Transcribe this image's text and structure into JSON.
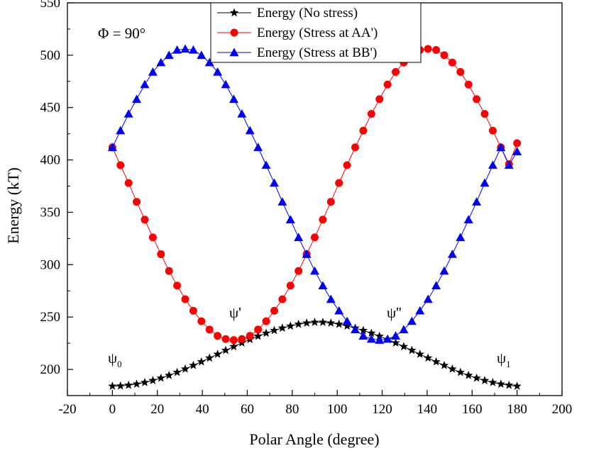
{
  "chart_data": {
    "type": "line",
    "title": "",
    "xlabel": "Polar Angle (degree)",
    "ylabel": "Energy (kT)",
    "xlim": [
      -20,
      200
    ],
    "ylim": [
      175,
      550
    ],
    "xticks": [
      "-20",
      "0",
      "20",
      "40",
      "60",
      "80",
      "100",
      "120",
      "140",
      "160",
      "180",
      "200"
    ],
    "yticks": [
      "200",
      "250",
      "300",
      "350",
      "400",
      "450",
      "500",
      "550"
    ],
    "grid": false,
    "legend_position": "top-center",
    "annotations": {
      "phi": "Φ = 90°",
      "psi0_main": "ψ",
      "psi0_sub": "0",
      "psi_prime": "ψ'",
      "psi_double_prime": "ψ''",
      "psi1_main": "ψ",
      "psi1_sub": "1"
    },
    "series": [
      {
        "name": "Energy (No stress)",
        "color": "#000000",
        "marker": "star",
        "x": [
          0,
          3.6,
          7.2,
          10.8,
          14.4,
          18,
          21.6,
          25.2,
          28.8,
          32.4,
          36,
          39.6,
          43.2,
          46.8,
          50.4,
          54,
          57.6,
          61.2,
          64.8,
          68.4,
          72,
          75.6,
          79.2,
          82.8,
          86.4,
          90,
          93.6,
          97.2,
          100.8,
          104.4,
          108,
          111.6,
          115.2,
          118.8,
          122.4,
          126,
          129.6,
          133.2,
          136.8,
          140.4,
          144,
          147.6,
          151.2,
          154.8,
          158.4,
          162,
          165.6,
          169.2,
          172.8,
          176.4,
          180
        ],
        "values": [
          184,
          184.2,
          184.9,
          186,
          187.5,
          189.4,
          191.7,
          194.3,
          197.2,
          200.4,
          203.8,
          207.3,
          210.9,
          214.5,
          218.2,
          221.8,
          225.3,
          228.6,
          231.7,
          234.6,
          237.2,
          239.5,
          241.4,
          243.1,
          244.3,
          245,
          245,
          244.3,
          243.1,
          241.4,
          239.5,
          237.2,
          234.6,
          231.7,
          228.6,
          225.3,
          221.8,
          218.2,
          214.5,
          210.9,
          207.3,
          203.8,
          200.4,
          197.2,
          194.3,
          191.7,
          189.4,
          187.5,
          186,
          184.9,
          184
        ]
      },
      {
        "name": "Energy (Stress at AA')",
        "color": "#ff0000",
        "marker": "circle",
        "x": [
          0,
          3.6,
          7.2,
          10.8,
          14.4,
          18,
          21.6,
          25.2,
          28.8,
          32.4,
          36,
          39.6,
          43.2,
          46.8,
          50.4,
          54,
          57.6,
          61.2,
          64.8,
          68.4,
          72,
          75.6,
          79.2,
          82.8,
          86.4,
          90,
          93.6,
          97.2,
          100.8,
          104.4,
          108,
          111.6,
          115.2,
          118.8,
          122.4,
          126,
          129.6,
          133.2,
          136.8,
          140.4,
          144,
          147.6,
          151.2,
          154.8,
          158.4,
          162,
          165.6,
          169.2,
          172.8,
          176.4,
          180
        ],
        "values": [
          412,
          395,
          378,
          360,
          343,
          326,
          310,
          294,
          280,
          267,
          256,
          246,
          238,
          232,
          229,
          228,
          229,
          232,
          238,
          246,
          256,
          267,
          280,
          294,
          310,
          326,
          343,
          360,
          378,
          395,
          412,
          428,
          444,
          458,
          472,
          484,
          493,
          500,
          505,
          506,
          505,
          500,
          493,
          484,
          472,
          458,
          444,
          428,
          412,
          396,
          416
        ]
      },
      {
        "name": "Energy (Stress at BB')",
        "color": "#0000ff",
        "marker": "triangle",
        "x": [
          0,
          3.6,
          7.2,
          10.8,
          14.4,
          18,
          21.6,
          25.2,
          28.8,
          32.4,
          36,
          39.6,
          43.2,
          46.8,
          50.4,
          54,
          57.6,
          61.2,
          64.8,
          68.4,
          72,
          75.6,
          79.2,
          82.8,
          86.4,
          90,
          93.6,
          97.2,
          100.8,
          104.4,
          108,
          111.6,
          115.2,
          118.8,
          122.4,
          126,
          129.6,
          133.2,
          136.8,
          140.4,
          144,
          147.6,
          151.2,
          154.8,
          158.4,
          162,
          165.6,
          169.2,
          172.8,
          176.4,
          180
        ],
        "values": [
          412,
          428,
          444,
          458,
          472,
          484,
          493,
          500,
          505,
          506,
          505,
          500,
          493,
          484,
          472,
          458,
          444,
          428,
          412,
          395,
          378,
          360,
          343,
          326,
          310,
          294,
          280,
          267,
          256,
          246,
          238,
          232,
          229,
          228,
          229,
          232,
          238,
          246,
          256,
          267,
          280,
          294,
          310,
          326,
          343,
          360,
          378,
          395,
          412,
          395,
          408
        ]
      }
    ]
  }
}
